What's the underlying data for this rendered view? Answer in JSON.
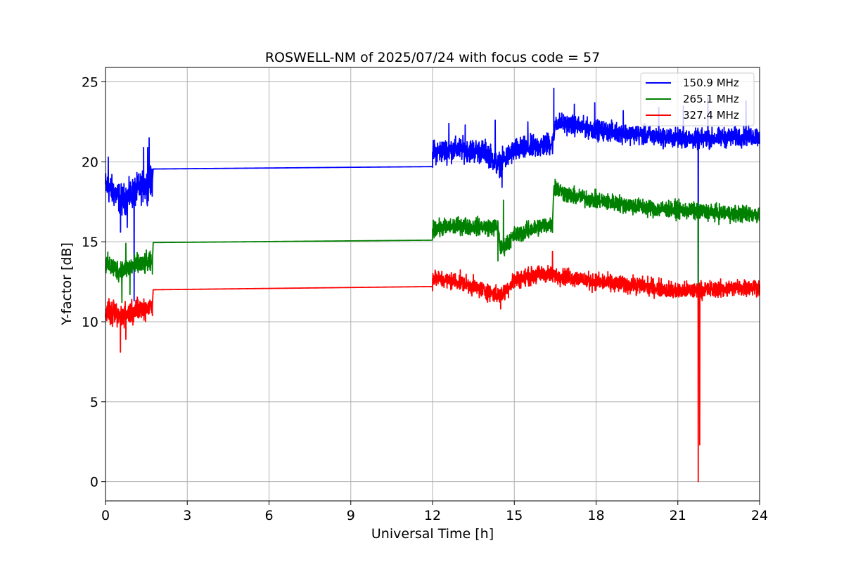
{
  "chart_data": {
    "type": "line",
    "title": "ROSWELL-NM of 2025/07/24 with focus code = 57",
    "xlabel": "Universal Time [h]",
    "ylabel": "Y-factor [dB]",
    "xlim": [
      0,
      24
    ],
    "ylim": [
      -1.2,
      25.9
    ],
    "xticks": [
      0,
      3,
      6,
      9,
      12,
      15,
      18,
      21,
      24
    ],
    "yticks": [
      0,
      5,
      10,
      15,
      20,
      25
    ],
    "grid": true,
    "legend_position": "top-right",
    "series": [
      {
        "name": "150.9 MHz",
        "color": "#0000ff",
        "anchors": [
          [
            0,
            18.5
          ],
          [
            0.3,
            18.1
          ],
          [
            0.6,
            17.6
          ],
          [
            0.9,
            17.9
          ],
          [
            1.2,
            18.3
          ],
          [
            1.5,
            18.5
          ],
          [
            1.72,
            18.8
          ],
          [
            1.75,
            19.55
          ],
          [
            12.0,
            19.7
          ],
          [
            12.0,
            20.6
          ],
          [
            13.0,
            20.8
          ],
          [
            14.0,
            20.6
          ],
          [
            14.4,
            19.8
          ],
          [
            15.0,
            20.7
          ],
          [
            16.0,
            21.0
          ],
          [
            16.45,
            21.2
          ],
          [
            16.5,
            22.5
          ],
          [
            18.0,
            22.0
          ],
          [
            20.0,
            21.6
          ],
          [
            21.7,
            21.4
          ],
          [
            22.5,
            21.5
          ],
          [
            24.0,
            21.6
          ]
        ],
        "noise_segments": [
          [
            0,
            1.72,
            0.7
          ],
          [
            12.0,
            16.45,
            0.55
          ],
          [
            16.5,
            24.0,
            0.45
          ]
        ],
        "spikes": [
          [
            0.1,
            20.3
          ],
          [
            0.55,
            15.6
          ],
          [
            0.8,
            15.9
          ],
          [
            1.05,
            11.3
          ],
          [
            1.4,
            20.9
          ],
          [
            1.55,
            20.9
          ],
          [
            1.6,
            21.5
          ],
          [
            12.6,
            22.4
          ],
          [
            13.2,
            22.3
          ],
          [
            14.3,
            22.6
          ],
          [
            14.55,
            18.4
          ],
          [
            15.5,
            22.5
          ],
          [
            16.45,
            24.6
          ],
          [
            17.2,
            23.6
          ],
          [
            17.95,
            23.7
          ],
          [
            19.0,
            23.2
          ],
          [
            20.3,
            23.4
          ],
          [
            21.2,
            23.5
          ],
          [
            21.75,
            12.0
          ],
          [
            22.1,
            24.0
          ],
          [
            23.5,
            23.8
          ]
        ]
      },
      {
        "name": "265.1 MHz",
        "color": "#008000",
        "anchors": [
          [
            0,
            13.6
          ],
          [
            0.5,
            13.2
          ],
          [
            1.0,
            13.5
          ],
          [
            1.72,
            13.7
          ],
          [
            1.75,
            14.95
          ],
          [
            12.0,
            15.1
          ],
          [
            12.0,
            15.8
          ],
          [
            13.0,
            16.0
          ],
          [
            14.4,
            15.9
          ],
          [
            14.5,
            14.5
          ],
          [
            15.0,
            15.4
          ],
          [
            16.0,
            16.0
          ],
          [
            16.4,
            16.1
          ],
          [
            16.45,
            18.4
          ],
          [
            17.0,
            17.9
          ],
          [
            18.0,
            17.6
          ],
          [
            20.0,
            17.1
          ],
          [
            21.7,
            16.9
          ],
          [
            22.5,
            16.8
          ],
          [
            24.0,
            16.7
          ]
        ],
        "noise_segments": [
          [
            0,
            1.72,
            0.5
          ],
          [
            12.0,
            16.4,
            0.4
          ],
          [
            16.45,
            24.0,
            0.4
          ]
        ],
        "spikes": [
          [
            0.6,
            11.2
          ],
          [
            0.75,
            14.9
          ],
          [
            0.9,
            11.7
          ],
          [
            14.4,
            13.8
          ],
          [
            14.6,
            17.6
          ],
          [
            21.75,
            11.0
          ],
          [
            16.5,
            18.9
          ]
        ]
      },
      {
        "name": "327.4 MHz",
        "color": "#ff0000",
        "anchors": [
          [
            0,
            10.6
          ],
          [
            0.5,
            10.3
          ],
          [
            1.0,
            10.7
          ],
          [
            1.72,
            11.0
          ],
          [
            1.75,
            12.0
          ],
          [
            12.0,
            12.2
          ],
          [
            12.0,
            12.7
          ],
          [
            13.0,
            12.5
          ],
          [
            14.5,
            11.6
          ],
          [
            15.0,
            12.6
          ],
          [
            16.0,
            13.0
          ],
          [
            17.0,
            12.8
          ],
          [
            18.0,
            12.5
          ],
          [
            20.0,
            12.2
          ],
          [
            21.0,
            11.9
          ],
          [
            22.0,
            12.0
          ],
          [
            24.0,
            12.2
          ]
        ],
        "noise_segments": [
          [
            0,
            1.72,
            0.55
          ],
          [
            12.0,
            24.0,
            0.4
          ]
        ],
        "spikes": [
          [
            0.55,
            8.1
          ],
          [
            0.75,
            8.9
          ],
          [
            14.5,
            10.8
          ],
          [
            16.4,
            14.4
          ],
          [
            21.75,
            0.0
          ],
          [
            21.8,
            2.3
          ]
        ]
      }
    ]
  }
}
